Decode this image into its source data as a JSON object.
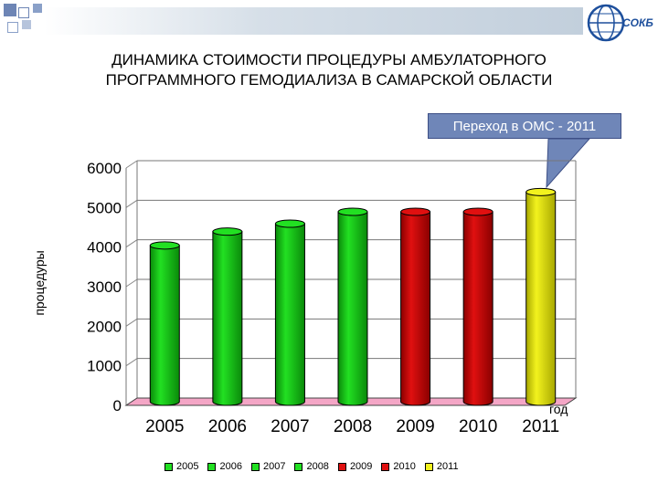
{
  "header": {
    "title_line1": "ДИНАМИКА СТОИМОСТИ ПРОЦЕДУРЫ АМБУЛАТОРНОГО",
    "title_line2": "ПРОГРАММНОГО ГЕМОДИАЛИЗА В САМАРСКОЙ ОБЛАСТИ",
    "logo_text": "СОКБ",
    "logo_icon": "globe-logo-icon"
  },
  "callout": {
    "text": "Переход в ОМС - 2011"
  },
  "colors": {
    "green": "#22e022",
    "green_dark": "#0a8a0a",
    "red": "#e01010",
    "red_dark": "#8a0000",
    "yellow": "#f2f21e",
    "yellow_dark": "#a8a800",
    "floor": "#f4a6c6",
    "callout_bg": "#6f86b8"
  },
  "chart_data": {
    "type": "bar",
    "title": "ДИНАМИКА СТОИМОСТИ ПРОЦЕДУРЫ АМБУЛАТОРНОГО ПРОГРАММНОГО ГЕМОДИАЛИЗА В САМАРСКОЙ ОБЛАСТИ",
    "xlabel": "год",
    "ylabel": "процедуры",
    "categories": [
      "2005",
      "2006",
      "2007",
      "2008",
      "2009",
      "2010",
      "2011"
    ],
    "values": [
      3950,
      4300,
      4500,
      4800,
      4800,
      4800,
      5300
    ],
    "bar_colors": [
      "green",
      "green",
      "green",
      "green",
      "red",
      "red",
      "yellow"
    ],
    "ylim": [
      0,
      6000
    ],
    "yticks": [
      "0",
      "1000",
      "2000",
      "3000",
      "4000",
      "5000",
      "6000"
    ],
    "grid": true,
    "legend": [
      "2005",
      "2006",
      "2007",
      "2008",
      "2009",
      "2010",
      "2011"
    ],
    "legend_position": "bottom"
  }
}
